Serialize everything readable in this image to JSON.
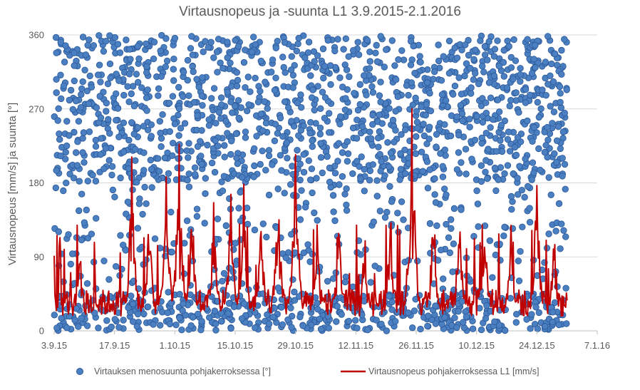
{
  "chart_data": {
    "type": "scatter",
    "title": "Virtausnopeus ja -suunta L1 3.9.2015-2.1.2016",
    "ylabel": "Virtausnopeus [mm/s] ja suunta [°]",
    "xlabel": "",
    "ylim": [
      0,
      360
    ],
    "y_ticks": [
      "0",
      "90",
      "180",
      "270",
      "360"
    ],
    "x_ticks": [
      "3.9.15",
      "17.9.15",
      "1.10.15",
      "15.10.15",
      "29.10.15",
      "12.11.15",
      "26.11.15",
      "10.12.15",
      "24.12.15",
      "7.1.16"
    ],
    "xlim": [
      "3.9.15",
      "7.1.16"
    ],
    "grid": "horizontal",
    "legend_position": "bottom",
    "series": [
      {
        "name": "Virtauksen menosuunta pohjakerroksessa [°]",
        "kind": "scatter",
        "color": "#4a7fc1",
        "edge_color": "#2b5797",
        "note_values": "dense directional readings spanning 0–360°, clustered mainly in 180–360° and 0–40°"
      },
      {
        "name": "Virtausnopeus pohjakerroksessa L1 [mm/s]",
        "kind": "line",
        "color": "#c00000",
        "peaks": [
          {
            "x": "9.9.15",
            "y": 108
          },
          {
            "x": "21.9.15",
            "y": 217
          },
          {
            "x": "25.9.15",
            "y": 160
          },
          {
            "x": "29.9.15",
            "y": 193
          },
          {
            "x": "2.10.15",
            "y": 243
          },
          {
            "x": "5.10.15",
            "y": 177
          },
          {
            "x": "10.10.15",
            "y": 157
          },
          {
            "x": "14.10.15",
            "y": 178
          },
          {
            "x": "17.10.15",
            "y": 183
          },
          {
            "x": "21.10.15",
            "y": 150
          },
          {
            "x": "25.10.15",
            "y": 202
          },
          {
            "x": "29.10.15",
            "y": 240
          },
          {
            "x": "3.11.15",
            "y": 130
          },
          {
            "x": "8.11.15",
            "y": 145
          },
          {
            "x": "14.11.15",
            "y": 120
          },
          {
            "x": "20.11.15",
            "y": 162
          },
          {
            "x": "25.11.15",
            "y": 305
          },
          {
            "x": "30.11.15",
            "y": 170
          },
          {
            "x": "6.12.15",
            "y": 172
          },
          {
            "x": "12.12.15",
            "y": 155
          },
          {
            "x": "18.12.15",
            "y": 138
          },
          {
            "x": "24.12.15",
            "y": 208
          },
          {
            "x": "28.12.15",
            "y": 128
          }
        ]
      }
    ]
  }
}
